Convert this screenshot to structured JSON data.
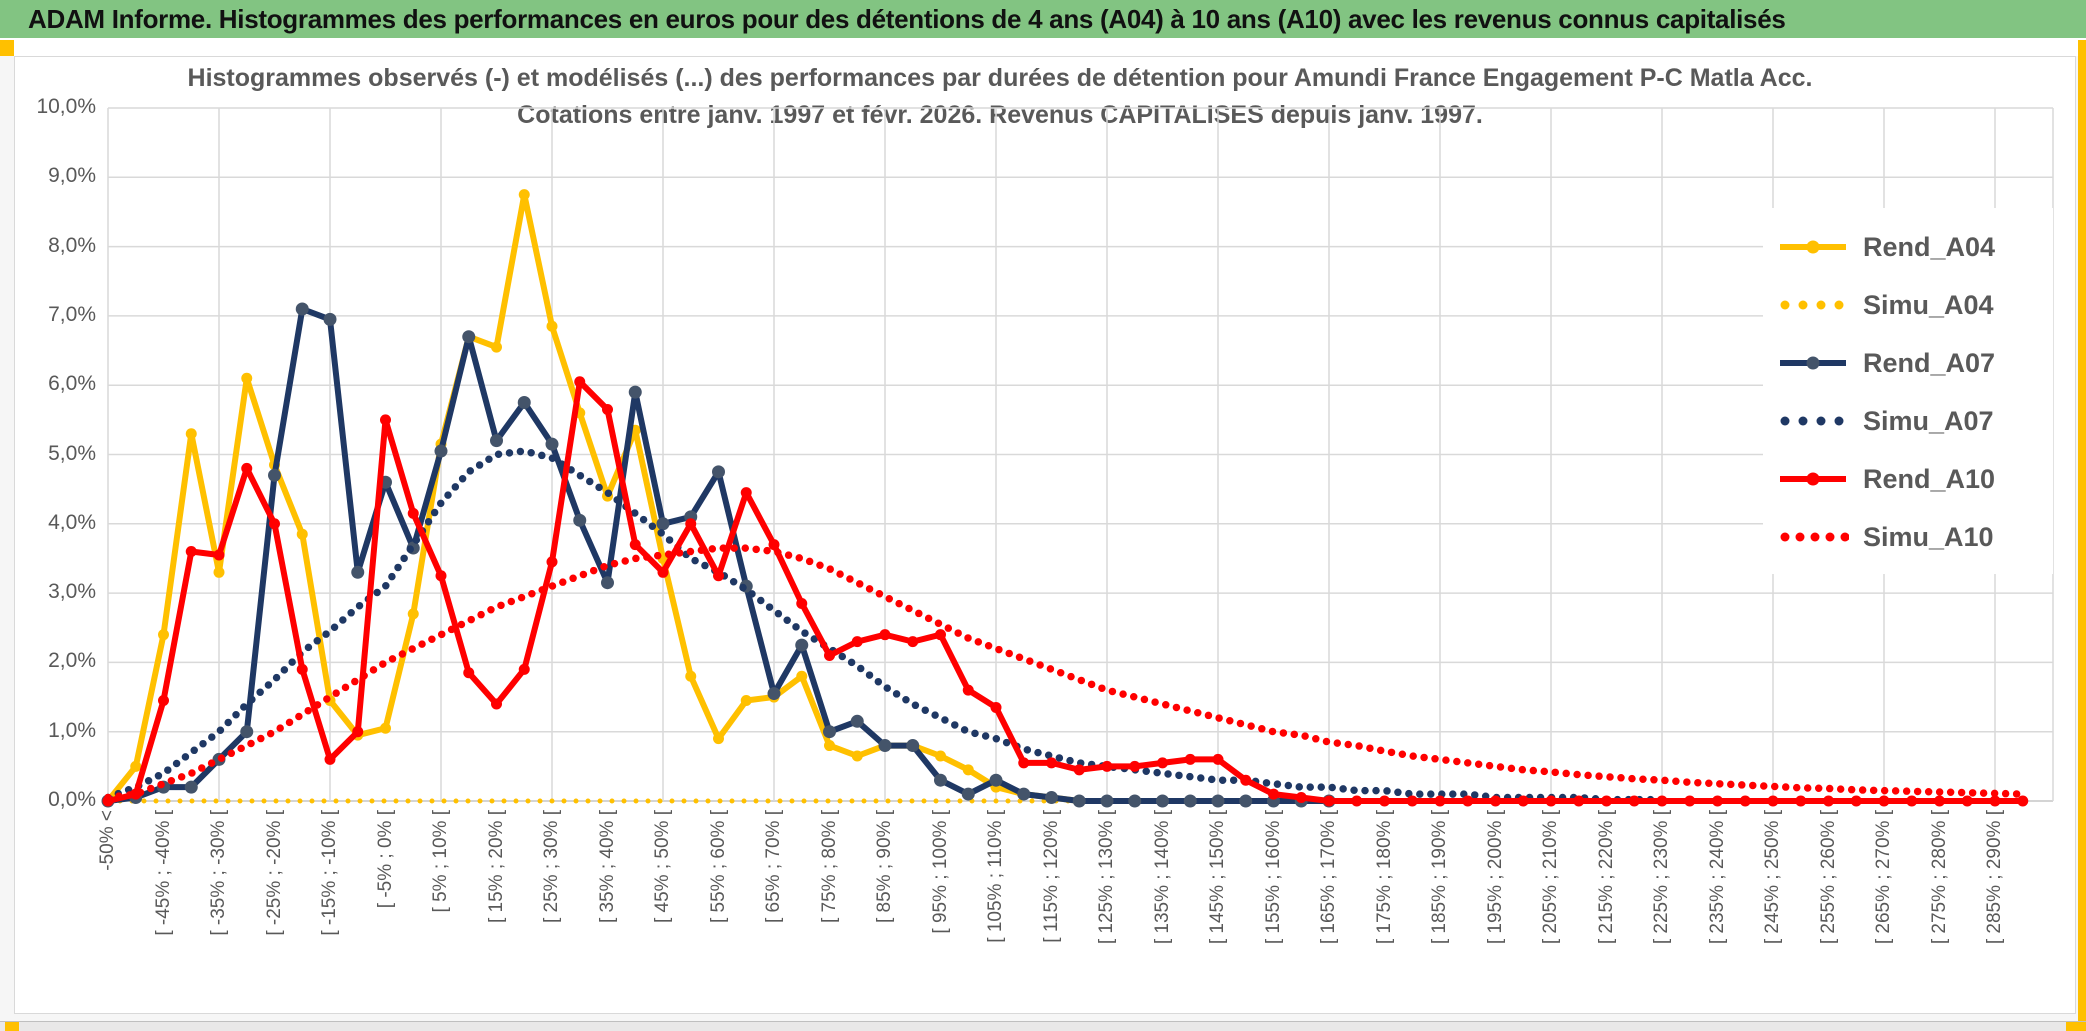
{
  "header": {
    "title": "ADAM Informe. Histogrammes des performances en euros pour des détentions de 4 ans (A04) à 10 ans (A10) avec les revenus connus capitalisés"
  },
  "accent_colors": {
    "banner_green": "#82C482",
    "gold": "#FFC000",
    "grid_gray": "#D9D9D9",
    "text_gray": "#595959"
  },
  "chart_data": {
    "type": "line",
    "title_line1": "Histogrammes observés (-) et modélisés (...) des performances par durées de détention pour Amundi France Engagement P-C Matla Acc.",
    "title_line2": "Cotations entre janv. 1997 et févr. 2026. Revenus CAPITALISES depuis janv. 1997.",
    "grid": true,
    "legend_position": "right",
    "bin_width_pct": 5,
    "x_label_note": "labels shown on every other 5%-wide bin",
    "y_axis": {
      "min": 0,
      "max": 10,
      "step": 1,
      "tick_labels": [
        "10,0%",
        "9,0%",
        "8,0%",
        "7,0%",
        "6,0%",
        "5,0%",
        "4,0%",
        "3,0%",
        "2,0%",
        "1,0%",
        "0,0%"
      ]
    },
    "x_axis": {
      "tick_labels": [
        "-50% <",
        "[ -45% ; -40% [",
        "[ -35% ; -30% [",
        "[ -25% ; -20% [",
        "[ -15% ; -10% [",
        "[ -5% ; 0% [",
        "[ 5% ; 10% [",
        "[ 15% ; 20% [",
        "[ 25% ; 30% [",
        "[ 35% ; 40% [",
        "[ 45% ; 50% [",
        "[ 55% ; 60% [",
        "[ 65% ; 70% [",
        "[ 75% ; 80% [",
        "[ 85% ; 90% [",
        "[ 95% ; 100% [",
        "[ 105% ; 110% [",
        "[ 115% ; 120% [",
        "[ 125% ; 130% [",
        "[ 135% ; 140% [",
        "[ 145% ; 150% [",
        "[ 155% ; 160% [",
        "[ 165% ; 170% [",
        "[ 175% ; 180% [",
        "[ 185% ; 190% [",
        "[ 195% ; 200% [",
        "[ 205% ; 210% [",
        "[ 215% ; 220% [",
        "[ 225% ; 230% [",
        "[ 235% ; 240% [",
        "[ 245% ; 250% [",
        "[ 255% ; 260% [",
        "[ 265% ; 270% [",
        "[ 275% ; 280% [",
        "[ 285% ; 290% ["
      ]
    },
    "series": [
      {
        "name": "Rend_A04",
        "style": "solid",
        "color": "#FFC000",
        "marker_color": "#FFC000",
        "values": [
          0,
          0.5,
          2.4,
          5.3,
          3.3,
          6.1,
          4.85,
          3.85,
          1.45,
          0.95,
          1.05,
          2.7,
          5.15,
          6.7,
          6.55,
          8.75,
          6.85,
          5.6,
          4.4,
          5.35,
          3.5,
          1.8,
          0.9,
          1.45,
          1.5,
          1.8,
          0.8,
          0.65,
          0.8,
          0.8,
          0.65,
          0.45,
          0.2,
          0.1,
          0.05,
          0,
          0
        ]
      },
      {
        "name": "Simu_A04",
        "style": "dotted",
        "color": "#FFC000",
        "values": [
          0,
          0,
          0,
          0,
          0,
          0,
          0,
          0,
          0,
          0,
          0,
          0,
          0,
          0,
          0,
          0,
          0,
          0,
          0,
          0,
          0,
          0,
          0,
          0,
          0,
          0,
          0,
          0,
          0,
          0,
          0,
          0,
          0,
          0,
          0,
          0,
          0,
          0,
          0,
          0,
          0,
          0,
          0,
          0,
          0,
          0,
          0,
          0,
          0,
          0,
          0,
          0,
          0,
          0,
          0,
          0,
          0,
          0,
          0,
          0,
          0,
          0,
          0,
          0,
          0,
          0,
          0,
          0,
          0,
          0
        ]
      },
      {
        "name": "Rend_A07",
        "style": "solid",
        "color": "#1F3864",
        "marker_color": "#44546A",
        "values": [
          0,
          0.05,
          0.2,
          0.2,
          0.6,
          1.0,
          4.7,
          7.1,
          6.95,
          3.3,
          4.6,
          3.65,
          5.05,
          6.7,
          5.2,
          5.75,
          5.15,
          4.05,
          3.15,
          5.9,
          4.0,
          4.1,
          4.75,
          3.1,
          1.55,
          2.25,
          1.0,
          1.15,
          0.8,
          0.8,
          0.3,
          0.1,
          0.3,
          0.1,
          0.05,
          0,
          0,
          0,
          0,
          0,
          0,
          0,
          0,
          0,
          0
        ]
      },
      {
        "name": "Simu_A07",
        "style": "dotted",
        "color": "#1F3864",
        "values": [
          0.05,
          0.2,
          0.4,
          0.7,
          1.0,
          1.4,
          1.75,
          2.15,
          2.45,
          2.8,
          3.1,
          3.7,
          4.3,
          4.75,
          5.0,
          5.05,
          4.95,
          4.7,
          4.45,
          4.15,
          3.85,
          3.5,
          3.3,
          3.05,
          2.75,
          2.45,
          2.2,
          1.95,
          1.65,
          1.4,
          1.2,
          1.0,
          0.9,
          0.75,
          0.65,
          0.55,
          0.5,
          0.45,
          0.4,
          0.35,
          0.3,
          0.3,
          0.25,
          0.2,
          0.2,
          0.15,
          0.15,
          0.1,
          0.1,
          0.1,
          0.05,
          0.05,
          0.05,
          0.05,
          0.02,
          0.02,
          0.02
        ]
      },
      {
        "name": "Rend_A10",
        "style": "solid",
        "color": "#FF0000",
        "marker_color": "#FF0000",
        "values": [
          0,
          0.1,
          1.45,
          3.6,
          3.55,
          4.8,
          4.0,
          1.9,
          0.6,
          1.0,
          5.5,
          4.15,
          3.25,
          1.85,
          1.4,
          1.9,
          3.45,
          6.05,
          5.65,
          3.7,
          3.3,
          4.0,
          3.25,
          4.45,
          3.7,
          2.85,
          2.1,
          2.3,
          2.4,
          2.3,
          2.4,
          1.6,
          1.35,
          0.55,
          0.55,
          0.45,
          0.5,
          0.5,
          0.55,
          0.6,
          0.6,
          0.3,
          0.1,
          0.05,
          0,
          0,
          0,
          0,
          0,
          0,
          0,
          0,
          0,
          0,
          0,
          0,
          0,
          0,
          0,
          0,
          0,
          0,
          0,
          0,
          0,
          0,
          0,
          0,
          0,
          0
        ]
      },
      {
        "name": "Simu_A10",
        "style": "dotted",
        "color": "#FF0000",
        "values": [
          0.05,
          0.1,
          0.25,
          0.4,
          0.6,
          0.8,
          1.0,
          1.25,
          1.5,
          1.75,
          2.0,
          2.2,
          2.4,
          2.6,
          2.8,
          2.95,
          3.1,
          3.25,
          3.4,
          3.5,
          3.55,
          3.6,
          3.65,
          3.65,
          3.6,
          3.5,
          3.35,
          3.15,
          2.95,
          2.75,
          2.55,
          2.35,
          2.2,
          2.05,
          1.9,
          1.75,
          1.6,
          1.5,
          1.4,
          1.3,
          1.2,
          1.1,
          1.0,
          0.95,
          0.85,
          0.8,
          0.72,
          0.65,
          0.6,
          0.55,
          0.5,
          0.45,
          0.42,
          0.38,
          0.35,
          0.32,
          0.3,
          0.27,
          0.25,
          0.23,
          0.21,
          0.19,
          0.18,
          0.16,
          0.15,
          0.14,
          0.13,
          0.12,
          0.11,
          0.1
        ]
      }
    ]
  }
}
